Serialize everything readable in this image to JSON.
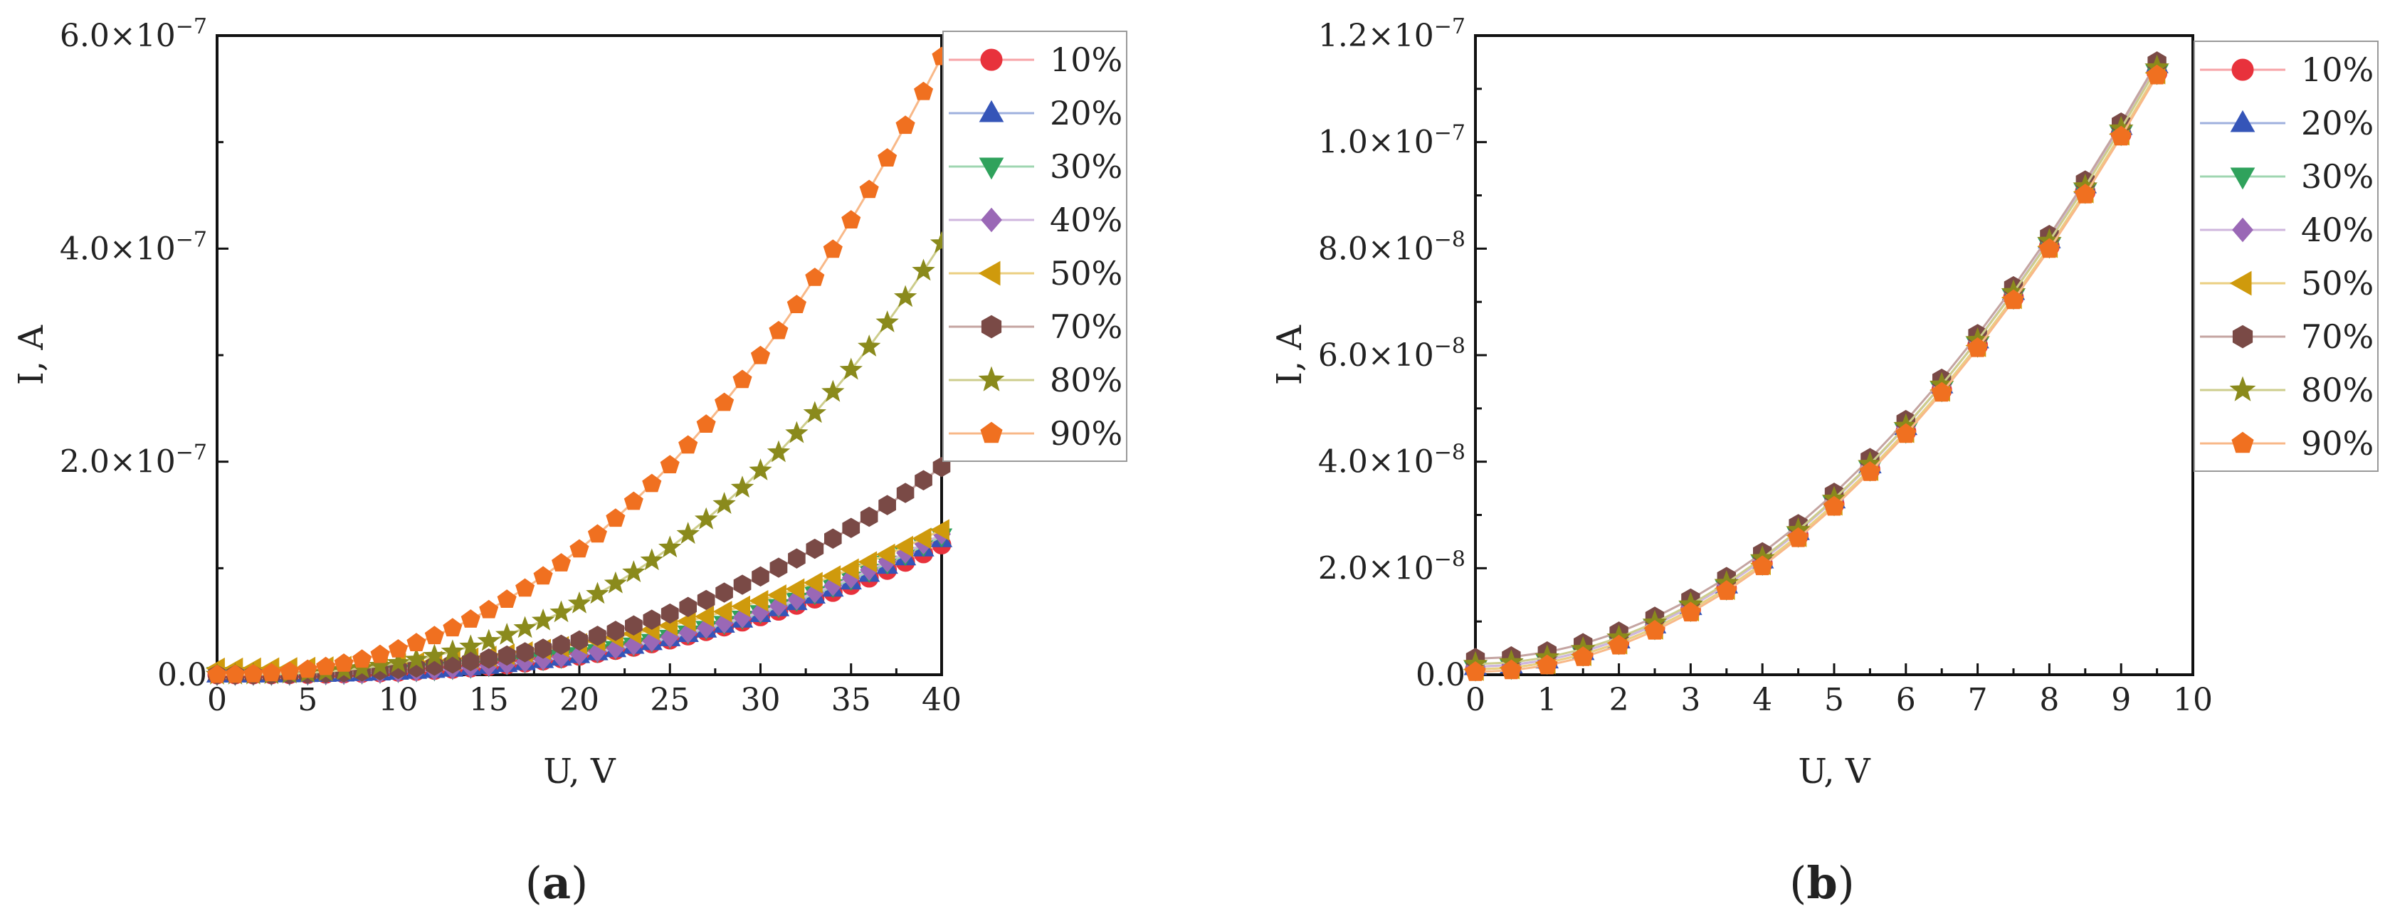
{
  "chart_data": [
    {
      "panel_label": "(a)",
      "panel_letter": "a",
      "type": "scatter",
      "mode": "lines+markers",
      "xlabel": "U, V",
      "ylabel": "I, A",
      "xlim": [
        0,
        40
      ],
      "ylim": [
        0,
        6e-07
      ],
      "x_ticks": [
        0,
        5,
        10,
        15,
        20,
        25,
        30,
        35,
        40
      ],
      "x_tick_labels": [
        "0",
        "5",
        "10",
        "15",
        "20",
        "25",
        "30",
        "35",
        "40"
      ],
      "y_ticks": [
        0,
        2e-07,
        4e-07,
        6e-07
      ],
      "y_tick_labels": [
        "0.0",
        "2.0×10",
        "4.0×10",
        "6.0×10"
      ],
      "y_tick_exponents": [
        "",
        "−7",
        "−7",
        "−7"
      ],
      "legend_position": "outside-right",
      "x_step": 1,
      "series": [
        {
          "name": "10%",
          "marker": "circle",
          "color": "#e8323c",
          "line_color": "#f7a3a7",
          "coef": 1.22e-07,
          "power": 2.8,
          "offset": 0
        },
        {
          "name": "20%",
          "marker": "triangle-up",
          "color": "#3555b8",
          "line_color": "#9fb0de",
          "coef": 1.27e-07,
          "power": 2.8,
          "offset": 0
        },
        {
          "name": "30%",
          "marker": "triangle-down",
          "color": "#2fa25c",
          "line_color": "#9fd6b1",
          "coef": 1.3e-07,
          "power": 2.8,
          "offset": 0
        },
        {
          "name": "40%",
          "marker": "diamond",
          "color": "#9a68b6",
          "line_color": "#cfb6de",
          "coef": 1.32e-07,
          "power": 2.8,
          "offset": 0
        },
        {
          "name": "50%",
          "marker": "triangle-left",
          "color": "#cf9a0c",
          "line_color": "#ebcf82",
          "coef": 1.3e-07,
          "power": 2.5,
          "offset": 6e-09
        },
        {
          "name": "70%",
          "marker": "hexagon",
          "color": "#7a4a46",
          "line_color": "#c4a4a1",
          "coef": 1.95e-07,
          "power": 2.6,
          "offset": 0
        },
        {
          "name": "80%",
          "marker": "star",
          "color": "#8a8a1c",
          "line_color": "#cdcd8c",
          "coef": 4.05e-07,
          "power": 2.6,
          "offset": 0
        },
        {
          "name": "90%",
          "marker": "pentagon",
          "color": "#f07020",
          "line_color": "#f8b888",
          "coef": 5.8e-07,
          "power": 2.3,
          "offset": 0
        }
      ]
    },
    {
      "panel_label": "(b)",
      "panel_letter": "b",
      "type": "scatter",
      "mode": "lines+markers",
      "xlabel": "U, V",
      "ylabel": "I, A",
      "xlim": [
        0,
        10
      ],
      "ylim": [
        0,
        1.2e-07
      ],
      "x_ticks": [
        0,
        1,
        2,
        3,
        4,
        5,
        6,
        7,
        8,
        9,
        10
      ],
      "x_tick_labels": [
        "0",
        "1",
        "2",
        "3",
        "4",
        "5",
        "6",
        "7",
        "8",
        "9",
        "10"
      ],
      "y_ticks": [
        0,
        2e-08,
        4e-08,
        6e-08,
        8e-08,
        1e-07,
        1.2e-07
      ],
      "y_tick_labels": [
        "0.0",
        "2.0×10",
        "4.0×10",
        "6.0×10",
        "8.0×10",
        "1.0×10",
        "1.2×10"
      ],
      "y_tick_exponents": [
        "",
        "−8",
        "−8",
        "−8",
        "−8",
        "−7",
        "−7"
      ],
      "legend_position": "outside-right",
      "x_step": 0.5,
      "x_max": 9.5,
      "series": [
        {
          "name": "10%",
          "marker": "circle",
          "color": "#e8323c",
          "line_color": "#f7a3a7",
          "coef": 1.12e-07,
          "power": 2,
          "offset": 1e-09
        },
        {
          "name": "20%",
          "marker": "triangle-up",
          "color": "#3555b8",
          "line_color": "#9fb0de",
          "coef": 1.13e-07,
          "power": 2,
          "offset": 1.5e-09
        },
        {
          "name": "30%",
          "marker": "triangle-down",
          "color": "#2fa25c",
          "line_color": "#9fd6b1",
          "coef": 1.12e-07,
          "power": 2,
          "offset": 1e-09
        },
        {
          "name": "40%",
          "marker": "diamond",
          "color": "#9a68b6",
          "line_color": "#cfb6de",
          "coef": 1.13e-07,
          "power": 2,
          "offset": 1.5e-09
        },
        {
          "name": "50%",
          "marker": "triangle-left",
          "color": "#cf9a0c",
          "line_color": "#ebcf82",
          "coef": 1.12e-07,
          "power": 2,
          "offset": 1e-09
        },
        {
          "name": "70%",
          "marker": "hexagon",
          "color": "#7a4a46",
          "line_color": "#c4a4a1",
          "coef": 1.12e-07,
          "power": 2,
          "offset": 3e-09
        },
        {
          "name": "80%",
          "marker": "star",
          "color": "#8a8a1c",
          "line_color": "#cdcd8c",
          "coef": 1.12e-07,
          "power": 2,
          "offset": 2e-09
        },
        {
          "name": "90%",
          "marker": "pentagon",
          "color": "#f07020",
          "line_color": "#f8b888",
          "coef": 1.12e-07,
          "power": 2,
          "offset": 5e-10
        }
      ]
    }
  ]
}
